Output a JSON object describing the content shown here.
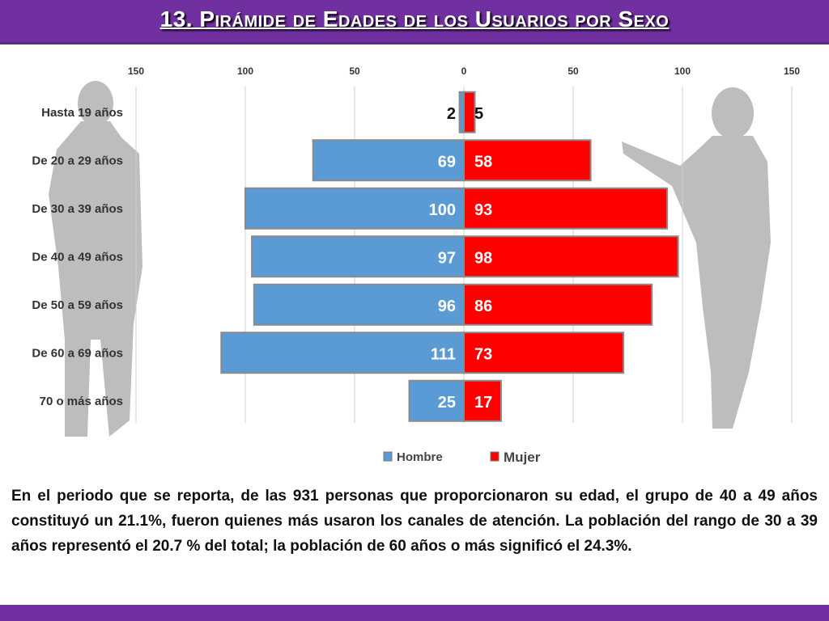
{
  "header": {
    "title": "13. Pirámide de Edades de los Usuarios por Sexo"
  },
  "chart_data": {
    "type": "bar",
    "categories": [
      "Hasta 19 años",
      "De 20 a 29 años",
      "De 30 a 39 años",
      "De 40 a 49 años",
      "De 50 a 59 años",
      "De 60 a 69 años",
      "70 o más años"
    ],
    "series": [
      {
        "name": "Hombre",
        "values": [
          2,
          69,
          100,
          97,
          96,
          111,
          25
        ]
      },
      {
        "name": "Mujer",
        "values": [
          5,
          58,
          93,
          98,
          86,
          73,
          17
        ]
      }
    ],
    "ticks": [
      "150",
      "100",
      "50",
      "0",
      "50",
      "100",
      "150"
    ],
    "xlim": [
      -150,
      150
    ],
    "title": "",
    "xlabel": "",
    "ylabel": "",
    "grid": true,
    "legend": "bottom",
    "colors": {
      "Hombre": "#5b9bd5",
      "Mujer": "#ff0000"
    }
  },
  "paragraph": "En el periodo que se reporta, de las 931 personas que proporcionaron su edad, el grupo de 40 a 49 años constituyó un 21.1%, fueron quienes más usaron los canales de atención. La población del rango de 30 a 39 años representó el 20.7 % del total; la población de 60 años o más significó el 24.3%."
}
